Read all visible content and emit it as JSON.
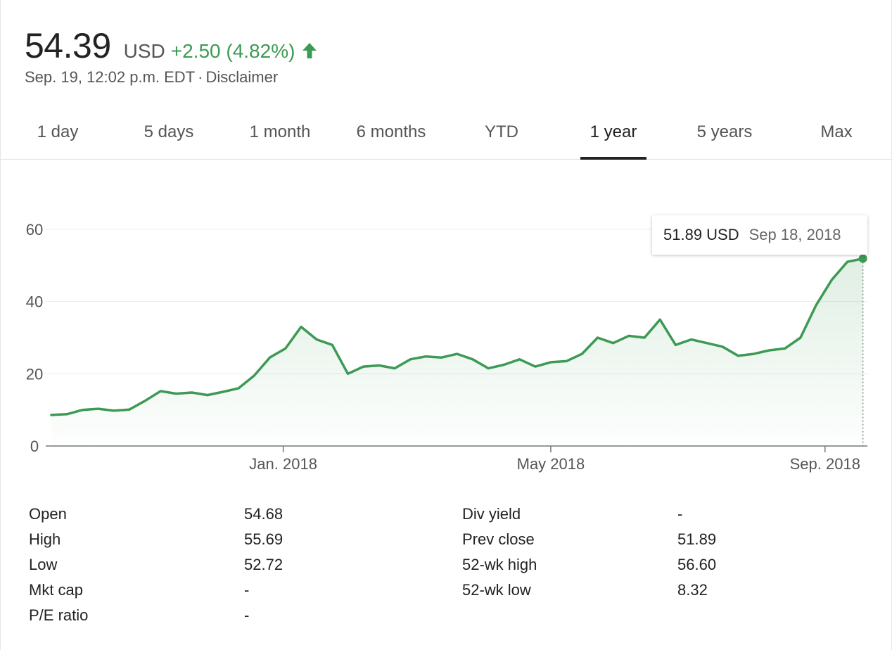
{
  "header": {
    "price": "54.39",
    "currency": "USD",
    "change": "+2.50 (4.82%)",
    "direction_icon": "arrow-up-icon",
    "timestamp": "Sep. 19, 12:02 p.m. EDT",
    "separator": "·",
    "disclaimer": "Disclaimer"
  },
  "tabs": [
    {
      "label": "1 day",
      "active": false
    },
    {
      "label": "5 days",
      "active": false
    },
    {
      "label": "1 month",
      "active": false
    },
    {
      "label": "6 months",
      "active": false
    },
    {
      "label": "YTD",
      "active": false
    },
    {
      "label": "1 year",
      "active": true
    },
    {
      "label": "5 years",
      "active": false
    },
    {
      "label": "Max",
      "active": false
    }
  ],
  "tooltip": {
    "value": "51.89 USD",
    "date": "Sep 18, 2018"
  },
  "colors": {
    "line": "#3c9a54",
    "fill": "#3c9a54",
    "gridline": "#ececec",
    "axis": "#777777"
  },
  "chart_data": {
    "type": "area",
    "title": "",
    "xlabel": "",
    "ylabel": "",
    "x_ticks": [
      "Jan. 2018",
      "May 2018",
      "Sep. 2018"
    ],
    "y_ticks": [
      0,
      20,
      40,
      60
    ],
    "ylim": [
      0,
      60
    ],
    "xlim": [
      "2017-09-19",
      "2018-09-20"
    ],
    "grid": true,
    "legend": "none",
    "series": [
      {
        "x": [
          "2017-09-19",
          "2017-09-26",
          "2017-10-03",
          "2017-10-10",
          "2017-10-17",
          "2017-10-24",
          "2017-10-31",
          "2017-11-07",
          "2017-11-14",
          "2017-11-21",
          "2017-11-28",
          "2017-12-05",
          "2017-12-12",
          "2017-12-19",
          "2017-12-26",
          "2018-01-02",
          "2018-01-09",
          "2018-01-16",
          "2018-01-23",
          "2018-01-30",
          "2018-02-06",
          "2018-02-13",
          "2018-02-20",
          "2018-02-27",
          "2018-03-06",
          "2018-03-13",
          "2018-03-20",
          "2018-03-27",
          "2018-04-03",
          "2018-04-10",
          "2018-04-17",
          "2018-04-24",
          "2018-05-01",
          "2018-05-08",
          "2018-05-15",
          "2018-05-22",
          "2018-05-29",
          "2018-06-05",
          "2018-06-12",
          "2018-06-19",
          "2018-06-26",
          "2018-07-03",
          "2018-07-10",
          "2018-07-17",
          "2018-07-24",
          "2018-07-31",
          "2018-08-07",
          "2018-08-14",
          "2018-08-21",
          "2018-08-28",
          "2018-09-04",
          "2018-09-11",
          "2018-09-18"
        ],
        "values": [
          8.6,
          8.8,
          10.0,
          10.3,
          9.8,
          10.1,
          12.5,
          15.2,
          14.5,
          14.8,
          14.1,
          15.0,
          16.0,
          19.5,
          24.5,
          27.0,
          33.0,
          29.5,
          28.0,
          20.0,
          22.0,
          22.3,
          21.5,
          24.0,
          24.8,
          24.5,
          25.5,
          24.0,
          21.5,
          22.5,
          24.0,
          22.0,
          23.2,
          23.5,
          25.5,
          30.0,
          28.5,
          30.5,
          30.0,
          35.0,
          28.0,
          29.5,
          28.5,
          27.5,
          25.0,
          25.5,
          26.5,
          27.0,
          30.0,
          39.0,
          46.0,
          51.0,
          51.89
        ]
      }
    ]
  },
  "stats": {
    "rows": [
      {
        "label1": "Open",
        "value1": "54.68",
        "label2": "Div yield",
        "value2": "-"
      },
      {
        "label1": "High",
        "value1": "55.69",
        "label2": "Prev close",
        "value2": "51.89"
      },
      {
        "label1": "Low",
        "value1": "52.72",
        "label2": "52-wk high",
        "value2": "56.60"
      },
      {
        "label1": "Mkt cap",
        "value1": "-",
        "label2": "52-wk low",
        "value2": "8.32"
      },
      {
        "label1": "P/E ratio",
        "value1": "-",
        "label2": "",
        "value2": ""
      }
    ]
  }
}
